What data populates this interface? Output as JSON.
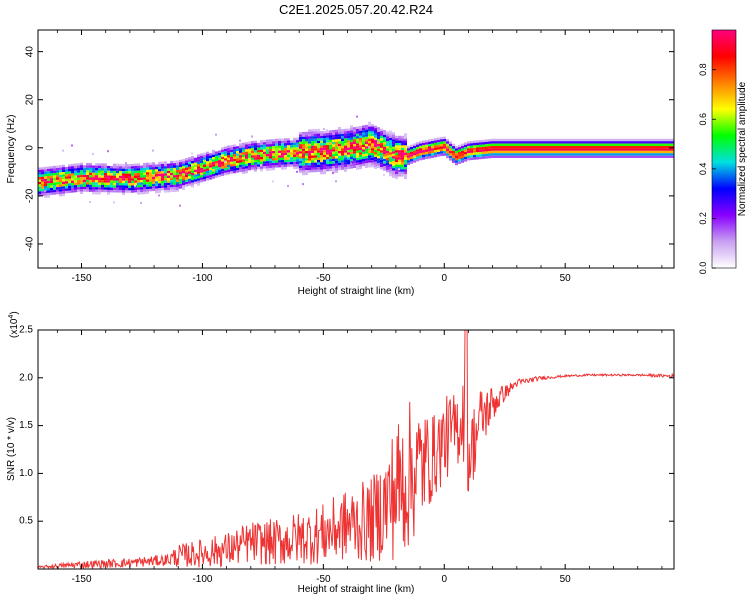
{
  "title": "C2E1.2025.057.20.42.R24",
  "chart_data": [
    {
      "type": "heatmap",
      "xlabel": "Height of straight line (km)",
      "ylabel": "Frequency (Hz)",
      "xlim": [
        -168,
        95
      ],
      "ylim": [
        -50,
        49
      ],
      "xticks": [
        -150,
        -100,
        -50,
        0,
        50
      ],
      "yticks": [
        -40,
        -20,
        0,
        20,
        40
      ],
      "colorbar": {
        "label": "Normalized spectral amplitude",
        "range": [
          0,
          0.96
        ],
        "ticks": [
          0.0,
          0.2,
          0.4,
          0.6,
          0.8
        ],
        "colormap": [
          "#ffffff",
          "#c9a0f0",
          "#8800ff",
          "#0000ff",
          "#00e0e0",
          "#00ff00",
          "#ffff00",
          "#ff8000",
          "#ff0000",
          "#ff0080"
        ]
      },
      "ridge": {
        "x": [
          -168,
          -150,
          -130,
          -110,
          -100,
          -90,
          -80,
          -70,
          -60,
          -50,
          -40,
          -30,
          -20,
          -15,
          -10,
          -5,
          0,
          5,
          10,
          20,
          30,
          50,
          70,
          95
        ],
        "freq": [
          -14,
          -12,
          -12.5,
          -11,
          -8,
          -5,
          -3,
          -2,
          -1.5,
          -1,
          0,
          2,
          -3,
          -3,
          -1,
          0,
          1,
          -3,
          -1,
          0,
          0,
          0,
          0,
          0
        ]
      }
    },
    {
      "type": "line",
      "xlabel": "Height of straight line (km)",
      "ylabel": "SNR (10 * v/v)",
      "y_multiplier": "(x10",
      "y_multiplier_exp": "4",
      "xlim": [
        -168,
        95
      ],
      "ylim": [
        0,
        2.5
      ],
      "xticks": [
        -150,
        -100,
        -50,
        0,
        50
      ],
      "yticks": [
        0.5,
        1.0,
        1.5,
        2.0,
        2.5
      ],
      "color": "#ee3333",
      "series": [
        {
          "x": [
            -168,
            -150,
            -130,
            -115,
            -110,
            -100,
            -90,
            -80,
            -70,
            -60,
            -50,
            -40,
            -30,
            -25,
            -20,
            -15,
            -10,
            -5,
            0,
            5,
            8,
            10,
            15,
            20,
            25,
            30,
            40,
            50,
            60,
            70,
            80,
            95
          ],
          "y": [
            0.02,
            0.05,
            0.07,
            0.1,
            0.15,
            0.18,
            0.22,
            0.3,
            0.3,
            0.35,
            0.4,
            0.5,
            0.55,
            0.7,
            0.9,
            1.05,
            1.15,
            1.2,
            1.4,
            1.5,
            1.7,
            1.2,
            1.6,
            1.75,
            1.85,
            1.95,
            2.0,
            2.02,
            2.03,
            2.03,
            2.03,
            2.02
          ],
          "noise": [
            0.01,
            0.04,
            0.05,
            0.06,
            0.12,
            0.15,
            0.18,
            0.22,
            0.25,
            0.28,
            0.32,
            0.38,
            0.45,
            0.55,
            0.75,
            0.8,
            0.65,
            0.45,
            0.45,
            0.4,
            0.55,
            0.45,
            0.35,
            0.2,
            0.08,
            0.04,
            0.02,
            0.01,
            0.01,
            0.01,
            0.01,
            0.02
          ]
        }
      ]
    }
  ]
}
